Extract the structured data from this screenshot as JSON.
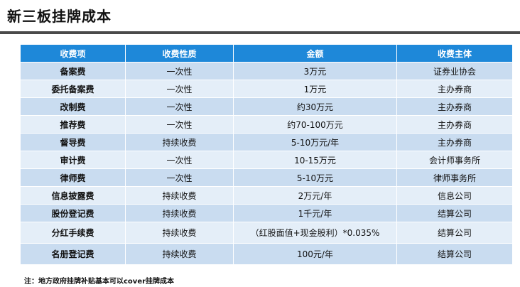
{
  "title": "新三板挂牌成本",
  "table": {
    "headers": [
      "收费项",
      "收费性质",
      "金额",
      "收费主体"
    ],
    "rows": [
      [
        "备案费",
        "一次性",
        "3万元",
        "证券业协会"
      ],
      [
        "委托备案费",
        "一次性",
        "1万元",
        "主办券商"
      ],
      [
        "改制费",
        "一次性",
        "约30万元",
        "主办券商"
      ],
      [
        "推荐费",
        "一次性",
        "约70-100万元",
        "主办券商"
      ],
      [
        "督导费",
        "持续收费",
        "5-10万元/年",
        "主办券商"
      ],
      [
        "审计费",
        "一次性",
        "10-15万元",
        "会计师事务所"
      ],
      [
        "律师费",
        "一次性",
        "5-10万元",
        "律师事务所"
      ],
      [
        "信息披露费",
        "持续收费",
        "2万元/年",
        "信息公司"
      ],
      [
        "股份登记费",
        "持续收费",
        "1千元/年",
        "结算公司"
      ],
      [
        "分红手续费",
        "持续收费",
        "（红股面值+现金股利）*0.035%",
        "结算公司"
      ],
      [
        "名册登记费",
        "持续收费",
        "100元/年",
        "结算公司"
      ]
    ]
  },
  "note": "注：地方政府挂牌补贴基本可以cover挂牌成本"
}
